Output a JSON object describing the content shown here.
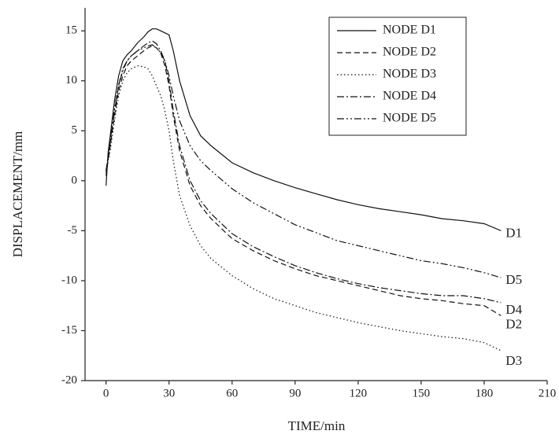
{
  "chart_data": {
    "type": "line",
    "x_label": "TIME/min",
    "y_label": "DISPLACEMENT/mm",
    "x": [
      0,
      1,
      2,
      4,
      6,
      8,
      10,
      12,
      15,
      18,
      20,
      22,
      24,
      26,
      28,
      30,
      32,
      35,
      40,
      45,
      50,
      60,
      70,
      80,
      90,
      100,
      110,
      120,
      130,
      140,
      150,
      160,
      170,
      180,
      188
    ],
    "series": [
      {
        "name": "NODE D1",
        "label": "D1",
        "color": "#111",
        "linestyle": "solid",
        "values": [
          -0.5,
          2.8,
          4.5,
          8,
          10.5,
          12,
          12.6,
          13,
          13.8,
          14.4,
          14.9,
          15.2,
          15.2,
          15,
          14.8,
          14.6,
          13,
          10,
          6.5,
          4.5,
          3.5,
          1.8,
          0.8,
          0,
          -0.7,
          -1.3,
          -1.9,
          -2.4,
          -2.8,
          -3.1,
          -3.4,
          -3.8,
          -4,
          -4.3,
          -5
        ]
      },
      {
        "name": "NODE D2",
        "label": "D2",
        "color": "#111",
        "linestyle": "dashed",
        "values": [
          0.5,
          2,
          3.5,
          6.5,
          9,
          10.5,
          11.5,
          12,
          12.5,
          13,
          13.3,
          13.5,
          13.3,
          12.8,
          11.5,
          9.5,
          6.5,
          3,
          -0.5,
          -2.5,
          -3.8,
          -5.8,
          -7,
          -8,
          -8.8,
          -9.5,
          -10,
          -10.5,
          -11,
          -11.5,
          -11.8,
          -12,
          -12.3,
          -12.5,
          -13.5
        ]
      },
      {
        "name": "NODE D3",
        "label": "D3",
        "color": "#111",
        "linestyle": "dotted",
        "values": [
          1,
          2,
          3,
          6,
          8.5,
          10,
          10.8,
          11.2,
          11.5,
          11.4,
          11.2,
          10.5,
          9.5,
          8.5,
          7,
          5,
          2,
          -1.5,
          -4.5,
          -6.5,
          -7.8,
          -9.5,
          -10.8,
          -11.8,
          -12.5,
          -13.2,
          -13.7,
          -14.2,
          -14.6,
          -15,
          -15.3,
          -15.6,
          -15.8,
          -16.2,
          -17
        ]
      },
      {
        "name": "NODE D4",
        "label": "D4",
        "color": "#111",
        "linestyle": "dashdot",
        "values": [
          0.8,
          2.2,
          3.8,
          7,
          9.5,
          11,
          12,
          12.5,
          13,
          13.5,
          13.8,
          14,
          13.7,
          13,
          12,
          10,
          7,
          3.5,
          0,
          -2,
          -3.3,
          -5.3,
          -6.6,
          -7.6,
          -8.5,
          -9.2,
          -9.8,
          -10.3,
          -10.7,
          -11,
          -11.3,
          -11.5,
          -11.5,
          -11.8,
          -12.2
        ]
      },
      {
        "name": "NODE D5",
        "label": "D5",
        "color": "#111",
        "linestyle": "dashdotdot",
        "values": [
          1,
          2.5,
          4,
          7.2,
          9.6,
          11.2,
          12,
          12.5,
          13,
          13.3,
          13.5,
          13.6,
          13.3,
          12.8,
          12,
          10.5,
          8.5,
          6,
          3.5,
          2,
          1,
          -0.8,
          -2.2,
          -3.3,
          -4.4,
          -5.2,
          -6,
          -6.5,
          -7,
          -7.5,
          -8,
          -8.3,
          -8.7,
          -9.2,
          -9.7
        ]
      }
    ],
    "xlim": [
      -10,
      210
    ],
    "xticks": [
      0,
      30,
      60,
      90,
      120,
      150,
      180,
      210
    ],
    "ylim": [
      -20,
      17.3
    ],
    "yticks": [
      -20,
      -15,
      -10,
      -5,
      0,
      5,
      10,
      15
    ],
    "legend": "top-right",
    "grid": false
  }
}
